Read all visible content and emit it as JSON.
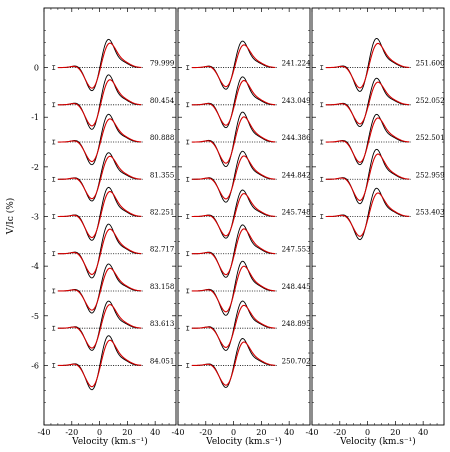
{
  "chart_data": {
    "type": "line",
    "ylabel": "V/I_c (%)",
    "xlabel": "Velocity (km.s^-1)",
    "xlim": [
      -40,
      55
    ],
    "ylim": [
      -7.2,
      1.2
    ],
    "xticks": [
      -40,
      -20,
      0,
      20,
      40
    ],
    "yticks": [
      0,
      -1,
      -2,
      -3,
      -4,
      -5,
      -6
    ],
    "grid": false,
    "offset_step": -0.75,
    "profile_x_range": [
      -30,
      30
    ],
    "observed_color": "#000000",
    "model_color": "#d40000",
    "panels": [
      {
        "name": "panel-1",
        "labels": [
          "79.999",
          "80.454",
          "80.888",
          "81.355",
          "82.251",
          "82.717",
          "83.158",
          "83.613",
          "84.051"
        ]
      },
      {
        "name": "panel-2",
        "labels": [
          "241.224",
          "243.049",
          "244.386",
          "244.842",
          "245.748",
          "247.553",
          "248.445",
          "248.895",
          "250.702"
        ]
      },
      {
        "name": "panel-3",
        "labels": [
          "251.600",
          "252.052",
          "252.501",
          "252.959",
          "253.403"
        ]
      }
    ]
  }
}
